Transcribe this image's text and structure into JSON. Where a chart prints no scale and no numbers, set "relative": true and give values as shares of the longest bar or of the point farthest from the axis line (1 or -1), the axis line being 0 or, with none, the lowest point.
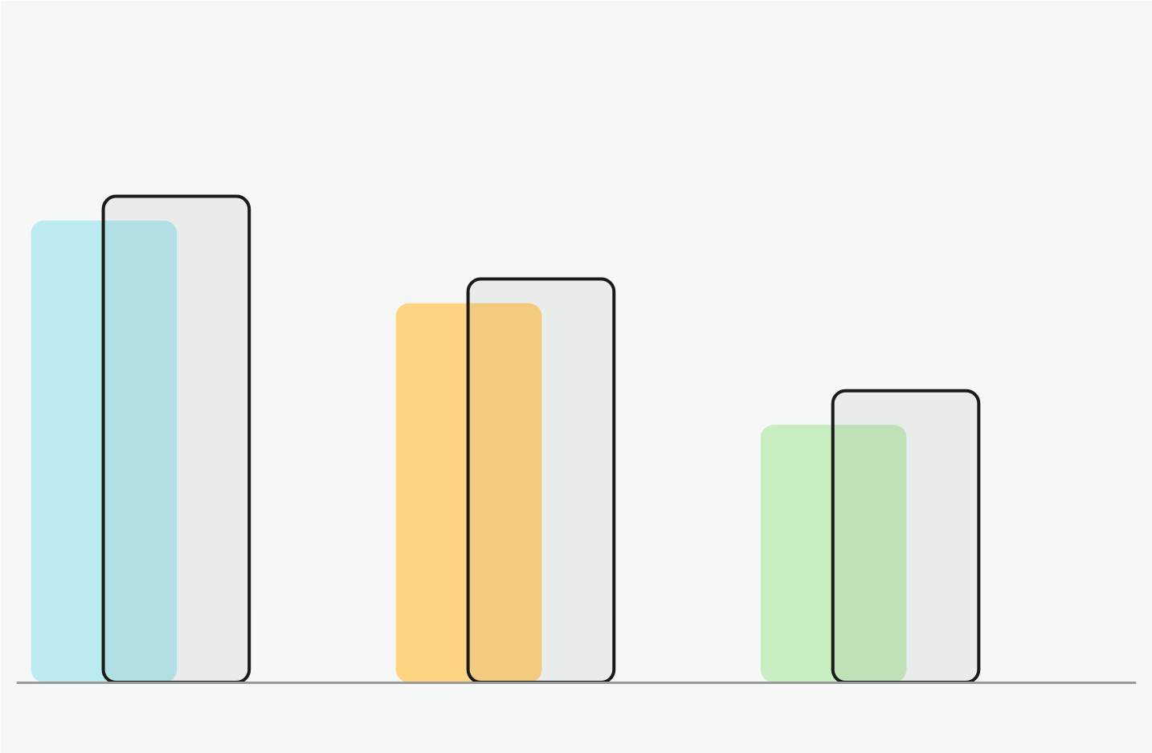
{
  "chart_data": {
    "type": "bar",
    "relative": true,
    "categories": [
      null,
      null,
      null
    ],
    "series": [
      {
        "colors": [
          "#bbeaf0",
          "#ffd584",
          "#c8edc0"
        ],
        "values": [
          0.95,
          0.78,
          0.53
        ]
      },
      {
        "color": "#1a1a1a",
        "values": [
          1,
          0.83,
          0.6
        ]
      }
    ],
    "grid": false
  }
}
